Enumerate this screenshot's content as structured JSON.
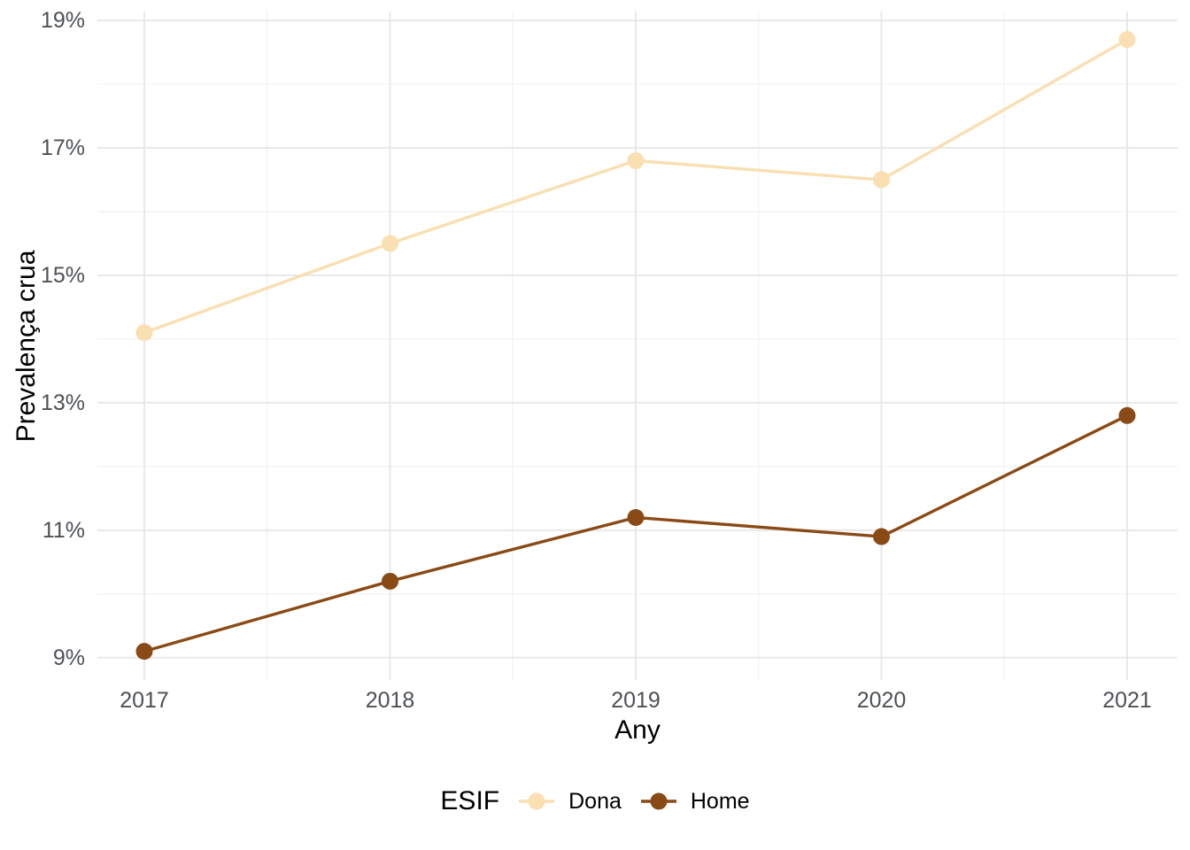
{
  "chart_data": {
    "type": "line",
    "x": [
      2017,
      2018,
      2019,
      2020,
      2021
    ],
    "x_tick_labels": [
      "2017",
      "2018",
      "2019",
      "2020",
      "2021"
    ],
    "y_ticks_major": [
      9,
      11,
      13,
      15,
      17,
      19
    ],
    "y_tick_labels": [
      "9%",
      "11%",
      "13%",
      "15%",
      "17%",
      "19%"
    ],
    "y_ticks_minor": [
      10,
      12,
      14,
      16,
      18
    ],
    "ylim": [
      8.65,
      19.14
    ],
    "xlabel": "Any",
    "ylabel": "Prevalença crua",
    "grid": true,
    "legend_title": "ESIF",
    "legend_position": "bottom",
    "series": [
      {
        "name": "Dona",
        "color": "#F9DFB1",
        "values": [
          14.1,
          15.5,
          16.8,
          16.5,
          18.7
        ]
      },
      {
        "name": "Home",
        "color": "#8A4A15",
        "values": [
          9.1,
          10.2,
          11.2,
          10.9,
          12.8
        ]
      }
    ]
  },
  "style": {
    "grid_major_color": "#E8E8E8",
    "grid_minor_color": "#F1F1F1",
    "tick_text_color": "#4d5156",
    "title_text_color": "#000000",
    "background": "#ffffff"
  }
}
